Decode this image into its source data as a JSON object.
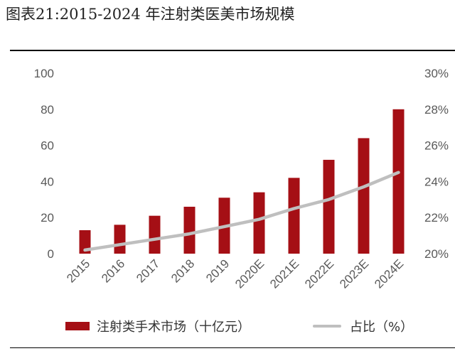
{
  "figure": {
    "title": "图表21:2015-2024 年注射类医美市场规模"
  },
  "colors": {
    "bar": "#A50F15",
    "line": "#BFBFBF"
  },
  "chart_data": {
    "type": "bar",
    "categories": [
      "2015",
      "2016",
      "2017",
      "2018",
      "2019",
      "2020E",
      "2021E",
      "2022E",
      "2023E",
      "2024E"
    ],
    "series": [
      {
        "name": "注射类手术市场（十亿元）",
        "type": "bar",
        "axis": "left",
        "values": [
          13,
          16,
          21,
          26,
          31,
          34,
          42,
          52,
          64,
          80
        ]
      },
      {
        "name": "占比（%）",
        "type": "line",
        "axis": "right",
        "values": [
          20.2,
          20.5,
          20.8,
          21.1,
          21.5,
          21.9,
          22.5,
          23.0,
          23.7,
          24.5
        ]
      }
    ],
    "ylim_left": [
      0,
      100
    ],
    "yticks_left": [
      "0",
      "20",
      "40",
      "60",
      "80",
      "100"
    ],
    "ylim_right": [
      20,
      30
    ],
    "yticks_right": [
      "20%",
      "22%",
      "24%",
      "26%",
      "28%",
      "30%"
    ],
    "grid": false,
    "legend_position": "bottom"
  }
}
